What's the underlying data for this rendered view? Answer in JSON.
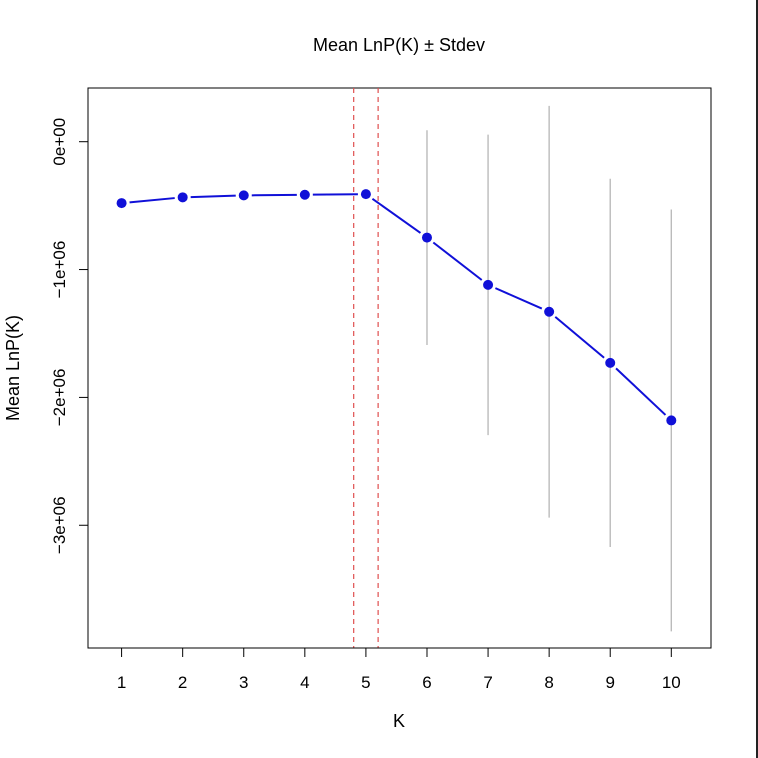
{
  "chart_data": {
    "type": "line",
    "title": "Mean LnP(K) ± Stdev",
    "xlabel": "K",
    "ylabel": "Mean LnP(K)",
    "x": [
      1,
      2,
      3,
      4,
      5,
      6,
      7,
      8,
      9,
      10
    ],
    "xticks": [
      "1",
      "2",
      "3",
      "4",
      "5",
      "6",
      "7",
      "8",
      "9",
      "10"
    ],
    "yticks": [
      {
        "value": 0,
        "label": "0e+00"
      },
      {
        "value": -1000000,
        "label": "−1e+06"
      },
      {
        "value": -2000000,
        "label": "−2e+06"
      },
      {
        "value": -3000000,
        "label": "−3e+06"
      }
    ],
    "series": [
      {
        "values": [
          -480000,
          -435000,
          -420000,
          -415000,
          -410000,
          -750000,
          -1120000,
          -1330000,
          -1730000,
          -2180000
        ],
        "stdev": [
          0,
          0,
          0,
          0,
          0,
          840000,
          1175000,
          1610000,
          1440000,
          1650000
        ],
        "color": "#1010d8"
      }
    ],
    "vlines": [
      {
        "x": 4.8,
        "color": "#e05050"
      },
      {
        "x": 5.2,
        "color": "#e05050"
      }
    ],
    "xlim": [
      0.45,
      10.65
    ],
    "ylim": [
      -3960000,
      420000
    ],
    "grid": false,
    "errorbar_color": "#bbbbbb"
  }
}
